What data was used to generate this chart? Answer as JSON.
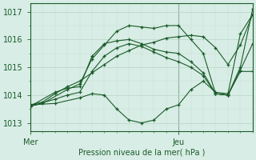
{
  "bg_color": "#d8ede5",
  "grid_color_major": "#b8d4c8",
  "grid_color_minor": "#c8dfd5",
  "line_color": "#1a5c2a",
  "xlabel": "Pression niveau de la mer( hPa )",
  "ylim": [
    1012.7,
    1017.3
  ],
  "yticks": [
    1013,
    1014,
    1015,
    1016,
    1017
  ],
  "xlim": [
    0,
    54
  ],
  "xtick_positions": [
    0,
    36
  ],
  "xtick_labels": [
    "Mer",
    "Jeu"
  ],
  "vline_x": 36,
  "series": [
    [
      0,
      1013.65,
      3,
      1013.75,
      6,
      1014.05,
      9,
      1014.3,
      12,
      1014.5,
      15,
      1014.8,
      18,
      1015.1,
      21,
      1015.4,
      24,
      1015.6,
      27,
      1015.8,
      30,
      1015.9,
      33,
      1016.05,
      36,
      1016.1,
      39,
      1016.15,
      42,
      1016.1,
      45,
      1015.7,
      48,
      1015.1,
      51,
      1015.8,
      54,
      1016.9
    ],
    [
      0,
      1013.65,
      6,
      1013.7,
      12,
      1013.9,
      15,
      1014.05,
      18,
      1014.0,
      21,
      1013.5,
      24,
      1013.1,
      27,
      1013.0,
      30,
      1013.1,
      33,
      1013.5,
      36,
      1013.65,
      39,
      1014.2,
      42,
      1014.5,
      45,
      1014.1,
      48,
      1014.05,
      51,
      1016.2,
      54,
      1016.9
    ],
    [
      0,
      1013.6,
      3,
      1013.7,
      9,
      1014.2,
      12,
      1014.4,
      15,
      1015.3,
      18,
      1015.8,
      21,
      1016.3,
      24,
      1016.5,
      27,
      1016.45,
      30,
      1016.4,
      33,
      1016.5,
      36,
      1016.5,
      39,
      1016.0,
      42,
      1015.5,
      45,
      1014.05,
      48,
      1014.0,
      51,
      1015.0,
      54,
      1017.1
    ],
    [
      0,
      1013.6,
      6,
      1014.1,
      9,
      1014.25,
      12,
      1014.3,
      15,
      1015.4,
      18,
      1015.85,
      21,
      1015.95,
      24,
      1016.0,
      27,
      1015.85,
      30,
      1015.65,
      33,
      1015.55,
      36,
      1015.5,
      39,
      1015.2,
      42,
      1014.8,
      45,
      1014.05,
      48,
      1014.0,
      51,
      1014.9,
      54,
      1015.85
    ],
    [
      0,
      1013.6,
      6,
      1013.85,
      9,
      1014.0,
      12,
      1014.1,
      15,
      1014.85,
      18,
      1015.4,
      21,
      1015.7,
      24,
      1015.85,
      27,
      1015.75,
      30,
      1015.55,
      33,
      1015.35,
      36,
      1015.2,
      39,
      1015.0,
      42,
      1014.7,
      45,
      1014.05,
      48,
      1014.0,
      51,
      1014.85,
      54,
      1014.85
    ]
  ]
}
